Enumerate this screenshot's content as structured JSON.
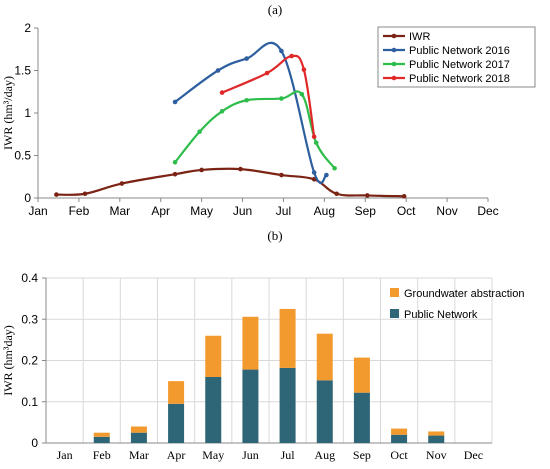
{
  "chart_data": [
    {
      "type": "line",
      "title": "(a)",
      "ylabel": "IWR (hm³/day)",
      "xlabel": "",
      "ylim": [
        0,
        2
      ],
      "xlim": [
        0,
        11
      ],
      "yticks": [
        "0",
        "0.5",
        "1",
        "1.5",
        "2"
      ],
      "ytick_values": [
        0,
        0.5,
        1,
        1.5,
        2
      ],
      "xticks": [
        "Jan",
        "Feb",
        "Mar",
        "Apr",
        "May",
        "Jun",
        "Jul",
        "Aug",
        "Sep",
        "Oct",
        "Nov",
        "Dec"
      ],
      "grid": false,
      "legend_position": "top-right",
      "series": [
        {
          "name": "IWR",
          "color": "#7b2314",
          "x": [
            0.45,
            1.15,
            2.05,
            3.35,
            4.0,
            4.95,
            5.95,
            6.75,
            7.3,
            8.05,
            8.95
          ],
          "y": [
            0.04,
            0.05,
            0.17,
            0.28,
            0.33,
            0.34,
            0.27,
            0.22,
            0.05,
            0.03,
            0.02
          ]
        },
        {
          "name": "Public Network 2016",
          "color": "#2d5fa0",
          "x": [
            3.35,
            4.4,
            5.1,
            5.95,
            6.75,
            7.05
          ],
          "y": [
            1.13,
            1.5,
            1.64,
            1.73,
            0.3,
            0.27
          ]
        },
        {
          "name": "Public Network 2017",
          "color": "#2ebd4a",
          "x": [
            3.35,
            3.95,
            4.5,
            5.1,
            5.95,
            6.45,
            6.8,
            7.25
          ],
          "y": [
            0.42,
            0.78,
            1.02,
            1.15,
            1.17,
            1.22,
            0.65,
            0.35
          ]
        },
        {
          "name": "Public Network 2018",
          "color": "#e02828",
          "x": [
            4.5,
            5.6,
            6.2,
            6.5,
            6.75
          ],
          "y": [
            1.24,
            1.47,
            1.67,
            1.51,
            0.72
          ]
        }
      ]
    },
    {
      "type": "bar",
      "title": "(b)",
      "ylabel": "IWR (hm³day)",
      "xlabel": "",
      "ylim": [
        0,
        0.4
      ],
      "yticks": [
        "0",
        "0.1",
        "0.2",
        "0.3",
        "0.4"
      ],
      "ytick_values": [
        0,
        0.1,
        0.2,
        0.3,
        0.4
      ],
      "grid": true,
      "stacked": true,
      "legend_position": "top-right",
      "categories": [
        "Jan",
        "Feb",
        "Mar",
        "Apr",
        "May",
        "Jun",
        "Jul",
        "Aug",
        "Sep",
        "Oct",
        "Nov",
        "Dec"
      ],
      "series": [
        {
          "name": "Public Network",
          "color": "#2e6577",
          "values": [
            0,
            0.015,
            0.025,
            0.095,
            0.16,
            0.178,
            0.182,
            0.152,
            0.122,
            0.02,
            0.018,
            0
          ]
        },
        {
          "name": "Groundwater abstraction",
          "color": "#f39a2f",
          "values": [
            0,
            0.01,
            0.015,
            0.055,
            0.1,
            0.128,
            0.143,
            0.113,
            0.085,
            0.015,
            0.01,
            0
          ]
        }
      ],
      "legend_order": [
        "Groundwater abstraction",
        "Public Network"
      ]
    }
  ]
}
